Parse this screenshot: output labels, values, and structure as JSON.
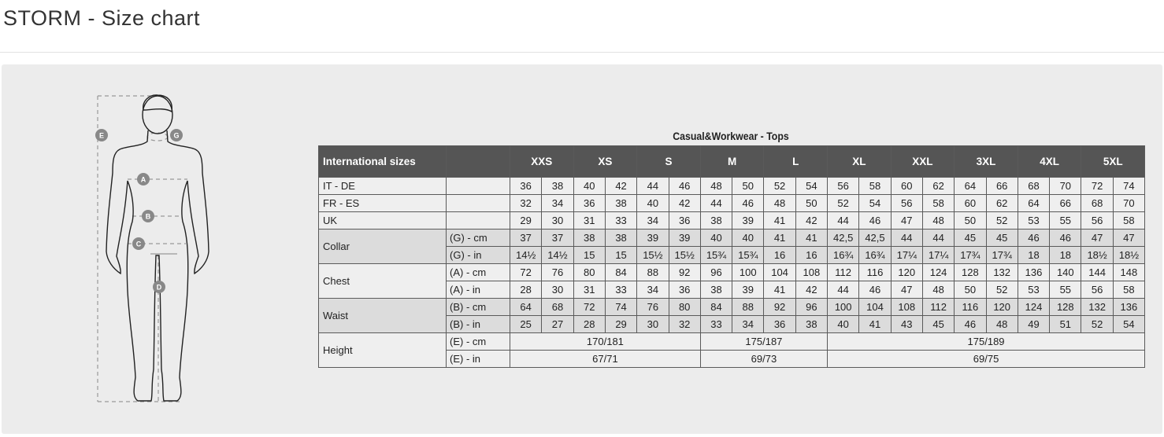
{
  "page": {
    "title": "STORM - Size chart"
  },
  "figure": {
    "labels": {
      "E": "E",
      "G": "G",
      "A": "A",
      "B": "B",
      "C": "C",
      "D": "D"
    }
  },
  "table": {
    "title": "Casual&Workwear - Tops",
    "header_label": "International sizes",
    "sizes": [
      "XXS",
      "XS",
      "S",
      "M",
      "L",
      "XL",
      "XXL",
      "3XL",
      "4XL",
      "5XL"
    ],
    "size_rows": [
      {
        "label": "IT - DE",
        "values": [
          "36",
          "38",
          "40",
          "42",
          "44",
          "46",
          "48",
          "50",
          "52",
          "54",
          "56",
          "58",
          "60",
          "62",
          "64",
          "66",
          "68",
          "70",
          "72",
          "74"
        ]
      },
      {
        "label": "FR - ES",
        "values": [
          "32",
          "34",
          "36",
          "38",
          "40",
          "42",
          "44",
          "46",
          "48",
          "50",
          "52",
          "54",
          "56",
          "58",
          "60",
          "62",
          "64",
          "66",
          "68",
          "70"
        ]
      },
      {
        "label": "UK",
        "values": [
          "29",
          "30",
          "31",
          "33",
          "34",
          "36",
          "38",
          "39",
          "41",
          "42",
          "44",
          "46",
          "47",
          "48",
          "50",
          "52",
          "53",
          "55",
          "56",
          "58"
        ]
      }
    ],
    "measurements": [
      {
        "label": "Collar",
        "shaded": true,
        "rows": [
          {
            "unit": "(G) - cm",
            "values": [
              "37",
              "37",
              "38",
              "38",
              "39",
              "39",
              "40",
              "40",
              "41",
              "41",
              "42,5",
              "42,5",
              "44",
              "44",
              "45",
              "45",
              "46",
              "46",
              "47",
              "47"
            ]
          },
          {
            "unit": "(G)  - in",
            "values": [
              "14½",
              "14½",
              "15",
              "15",
              "15½",
              "15½",
              "15¾",
              "15¾",
              "16",
              "16",
              "16¾",
              "16¾",
              "17¼",
              "17¼",
              "17¾",
              "17¾",
              "18",
              "18",
              "18½",
              "18½"
            ]
          }
        ]
      },
      {
        "label": "Chest",
        "shaded": false,
        "rows": [
          {
            "unit": "(A) - cm",
            "values": [
              "72",
              "76",
              "80",
              "84",
              "88",
              "92",
              "96",
              "100",
              "104",
              "108",
              "112",
              "116",
              "120",
              "124",
              "128",
              "132",
              "136",
              "140",
              "144",
              "148"
            ]
          },
          {
            "unit": "(A) - in",
            "values": [
              "28",
              "30",
              "31",
              "33",
              "34",
              "36",
              "38",
              "39",
              "41",
              "42",
              "44",
              "46",
              "47",
              "48",
              "50",
              "52",
              "53",
              "55",
              "56",
              "58"
            ]
          }
        ]
      },
      {
        "label": "Waist",
        "shaded": true,
        "rows": [
          {
            "unit": "(B) - cm",
            "values": [
              "64",
              "68",
              "72",
              "74",
              "76",
              "80",
              "84",
              "88",
              "92",
              "96",
              "100",
              "104",
              "108",
              "112",
              "116",
              "120",
              "124",
              "128",
              "132",
              "136"
            ]
          },
          {
            "unit": "(B) - in",
            "values": [
              "25",
              "27",
              "28",
              "29",
              "30",
              "32",
              "33",
              "34",
              "36",
              "38",
              "40",
              "41",
              "43",
              "45",
              "46",
              "48",
              "49",
              "51",
              "52",
              "54"
            ]
          }
        ]
      },
      {
        "label": "Height",
        "shaded": false,
        "rows": [
          {
            "unit": "(E) - cm",
            "spans": [
              {
                "text": "170/181",
                "cols": 6
              },
              {
                "text": "175/187",
                "cols": 4
              },
              {
                "text": "175/189",
                "cols": 10
              }
            ]
          },
          {
            "unit": "(E) - in",
            "spans": [
              {
                "text": "67/71",
                "cols": 6
              },
              {
                "text": "69/73",
                "cols": 4
              },
              {
                "text": "69/75",
                "cols": 10
              }
            ]
          }
        ]
      }
    ]
  }
}
